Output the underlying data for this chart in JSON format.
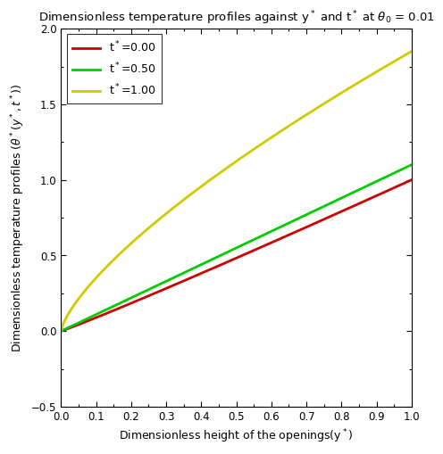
{
  "title": "Dimensionless temperature profiles against y$^*$ and t$^*$ at $\\theta_0$ = 0.01",
  "xlabel": "Dimensionless height of the openings(y$^*$)",
  "ylabel": "Dimensionless temperature profiles ($\\theta^*(y^*,t^*)$)",
  "xlim": [
    0,
    1
  ],
  "ylim": [
    -0.5,
    2
  ],
  "xticks": [
    0,
    0.1,
    0.2,
    0.3,
    0.4,
    0.5,
    0.6,
    0.7,
    0.8,
    0.9,
    1.0
  ],
  "yticks": [
    -0.5,
    0,
    0.5,
    1.0,
    1.5,
    2.0
  ],
  "lines": [
    {
      "label": "t$^*$=0.00",
      "color": "#cc0000",
      "linewidth": 2.0,
      "scale": 1.0,
      "power": 1.05
    },
    {
      "label": "t$^*$=0.50",
      "color": "#00cc00",
      "linewidth": 2.0,
      "scale": 1.1,
      "power": 1.0
    },
    {
      "label": "t$^*$=1.00",
      "color": "#cccc00",
      "linewidth": 2.0,
      "scale": 1.85,
      "power": 0.72
    }
  ],
  "legend_loc": "upper left",
  "background_color": "#ffffff",
  "title_fontsize": 9.5,
  "label_fontsize": 9,
  "tick_fontsize": 8.5,
  "legend_fontsize": 9
}
